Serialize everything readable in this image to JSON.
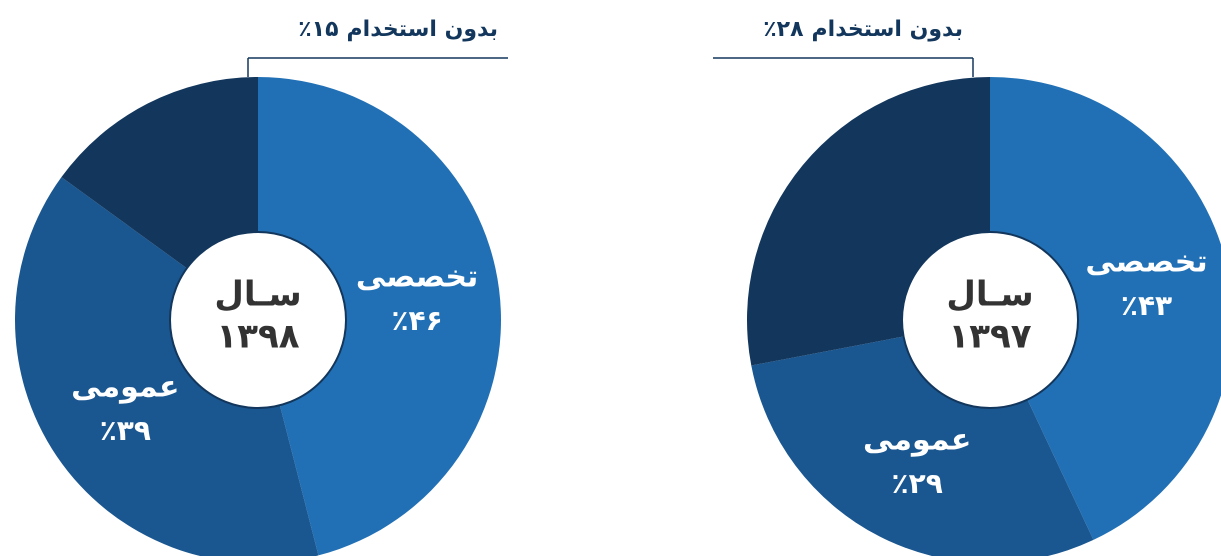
{
  "chart_data": [
    {
      "type": "pie",
      "center_text": [
        "سـال",
        "۱۳۹۸"
      ],
      "categories": [
        "تخصصی",
        "عمومی",
        "بدون استخدام"
      ],
      "values": [
        46,
        39,
        15
      ],
      "value_labels": [
        "٪۴۶",
        "٪۳۹",
        "٪۱۵"
      ],
      "colors": [
        "#2170b5",
        "#1a5690",
        "#12365c"
      ]
    },
    {
      "type": "pie",
      "center_text": [
        "سـال",
        "۱۳۹۷"
      ],
      "categories": [
        "تخصصی",
        "عمومی",
        "بدون استخدام"
      ],
      "values": [
        43,
        29,
        28
      ],
      "value_labels": [
        "٪۴۳",
        "٪۲۹",
        "٪۲۸"
      ],
      "colors": [
        "#2170b5",
        "#1a5690",
        "#12365c"
      ]
    }
  ]
}
